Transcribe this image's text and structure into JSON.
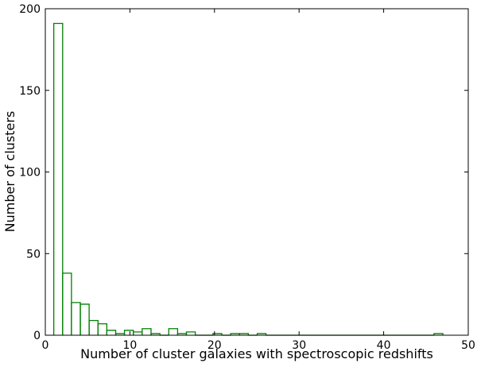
{
  "chart_data": {
    "type": "histogram",
    "xlabel": "Number of cluster galaxies with spectroscopic redshifts",
    "ylabel": "Number of clusters",
    "bins": [
      1,
      2.05,
      3.09,
      4.14,
      5.18,
      6.23,
      7.27,
      8.32,
      9.36,
      10.41,
      11.45,
      12.5,
      13.55,
      14.59,
      15.64,
      16.68,
      17.73,
      18.77,
      19.82,
      20.86,
      21.91,
      22.95,
      24,
      25.05,
      26.09,
      27.14,
      28.18,
      29.23,
      30.27,
      31.32,
      32.36,
      33.41,
      34.45,
      35.5,
      36.55,
      37.59,
      38.64,
      39.68,
      40.73,
      41.77,
      42.82,
      43.86,
      44.91,
      45.95,
      47
    ],
    "values": [
      191,
      38,
      20,
      19,
      9,
      7,
      3,
      1,
      3,
      2,
      4,
      1,
      0,
      4,
      1,
      2,
      0,
      0,
      1,
      0,
      1,
      1,
      0,
      1,
      0,
      0,
      0,
      0,
      0,
      0,
      0,
      0,
      0,
      0,
      0,
      0,
      0,
      0,
      0,
      0,
      0,
      0,
      0,
      1
    ],
    "color": "#008000",
    "xlim": [
      0,
      50
    ],
    "xticks": [
      0,
      10,
      20,
      30,
      40,
      50
    ],
    "ylim": [
      0,
      200
    ],
    "yticks": [
      0,
      50,
      100,
      150,
      200
    ],
    "grid": false
  }
}
